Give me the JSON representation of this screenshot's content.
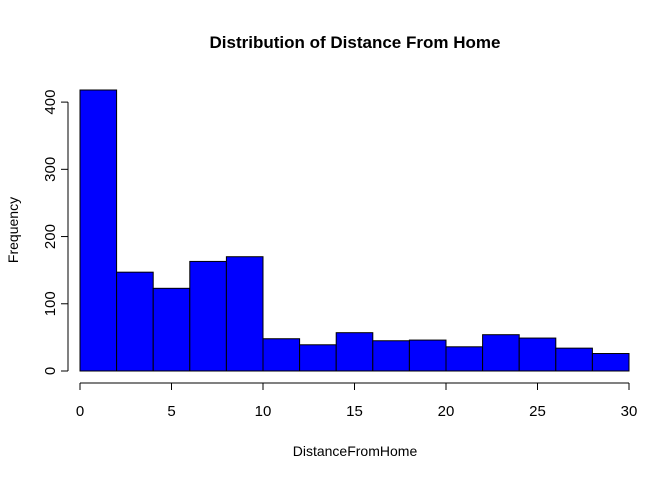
{
  "chart_data": {
    "type": "bar",
    "subtype": "histogram",
    "title": "Distribution of Distance From Home",
    "xlabel": "DistanceFromHome",
    "ylabel": "Frequency",
    "bin_edges": [
      0,
      2,
      4,
      6,
      8,
      10,
      12,
      14,
      16,
      18,
      20,
      22,
      24,
      26,
      28,
      30
    ],
    "values": [
      418,
      147,
      123,
      163,
      170,
      48,
      39,
      57,
      45,
      46,
      36,
      54,
      49,
      34,
      26
    ],
    "xlim": [
      0,
      30
    ],
    "ylim": [
      0,
      418
    ],
    "x_ticks": [
      "0",
      "5",
      "10",
      "15",
      "20",
      "25",
      "30"
    ],
    "y_ticks": [
      "0",
      "100",
      "200",
      "300",
      "400"
    ],
    "bar_color": "#0000ff",
    "bar_border_color": "#000000",
    "grid": false,
    "legend": "none"
  }
}
